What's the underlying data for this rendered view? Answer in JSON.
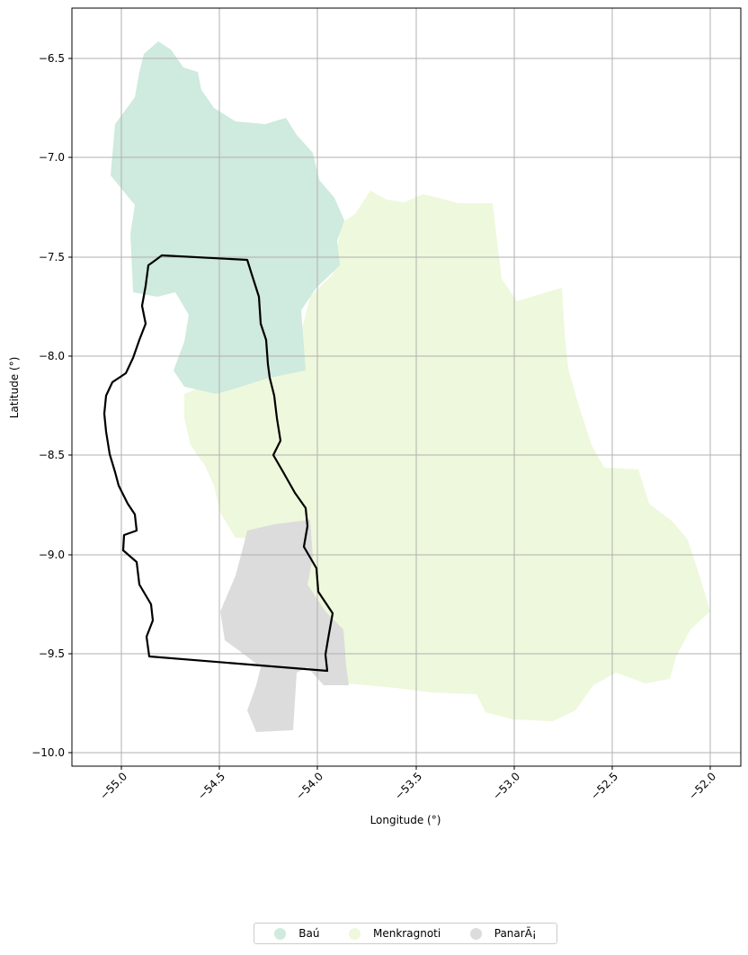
{
  "map": {
    "xlabel": "Longitude (°)",
    "ylabel": "Latitude (°)",
    "x_ticks": [
      "−55.0",
      "−54.5",
      "−54.0",
      "−53.5",
      "−53.0",
      "−52.5",
      "−52.0"
    ],
    "y_ticks": [
      "−6.5",
      "−7.0",
      "−7.5",
      "−8.0",
      "−8.5",
      "−9.0",
      "−9.5",
      "−10.0"
    ],
    "grid": true,
    "legend_position": "bottom-center"
  },
  "legend": {
    "items": [
      {
        "label": "Baú",
        "color": "#cfeade"
      },
      {
        "label": "Menkragnoti",
        "color": "#eef8dc"
      },
      {
        "label": "PanarÃ¡",
        "color": "#dcdcdc"
      }
    ]
  },
  "colors": {
    "bau": "#cfeade",
    "menkragnoti": "#eef8dc",
    "panara": "#dcdcdc",
    "outline": "#000000",
    "grid": "#b0b0b0"
  }
}
